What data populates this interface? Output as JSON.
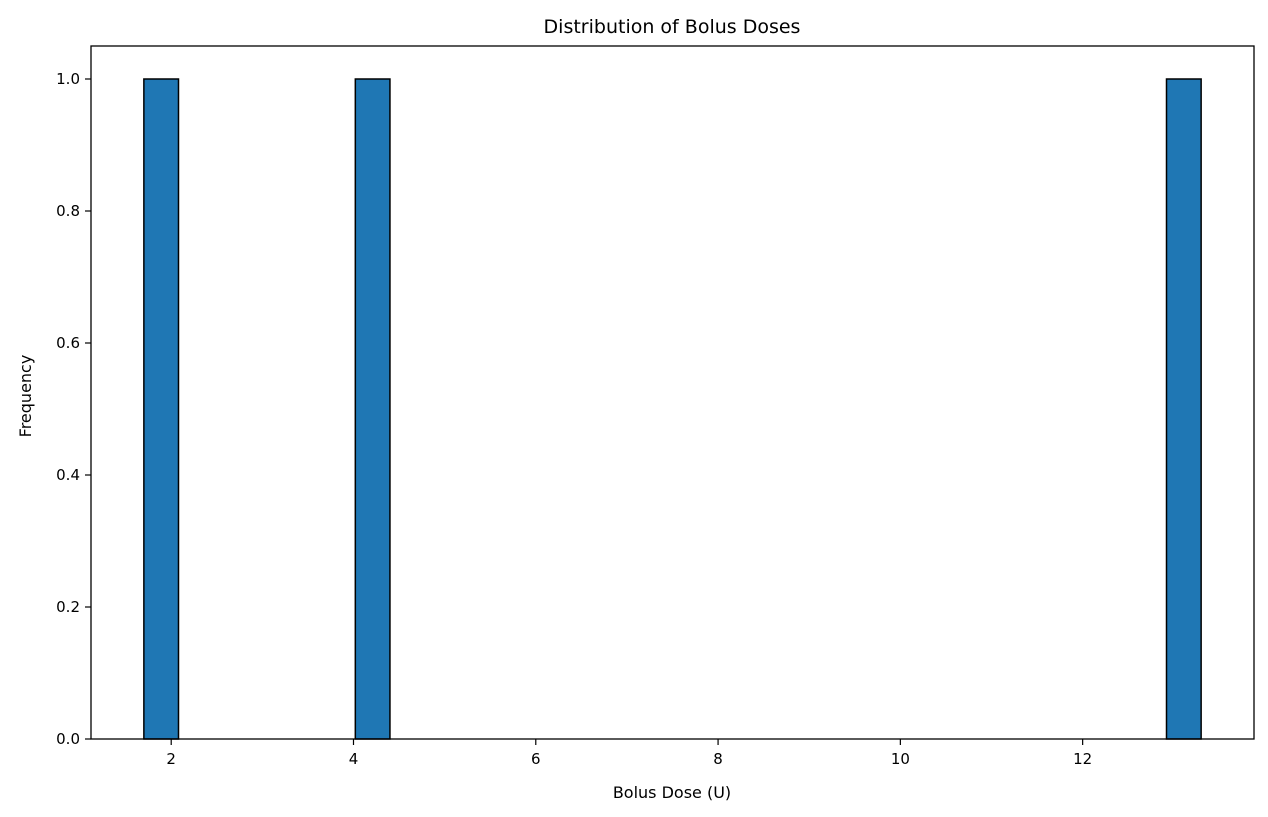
{
  "chart_data": {
    "type": "bar",
    "title": "Distribution of Bolus Doses",
    "xlabel": "Bolus Dose (U)",
    "ylabel": "Frequency",
    "xlim": [
      1.12,
      13.88
    ],
    "ylim": [
      0,
      1.05
    ],
    "xticks": [
      2,
      4,
      6,
      8,
      10,
      12
    ],
    "yticks": [
      0.0,
      0.2,
      0.4,
      0.6,
      0.8,
      1.0
    ],
    "bins": [
      {
        "x0": 1.7,
        "x1": 2.08,
        "count": 1
      },
      {
        "x0": 4.02,
        "x1": 4.4,
        "count": 1
      },
      {
        "x0": 12.92,
        "x1": 13.3,
        "count": 1
      }
    ],
    "grid": false,
    "colors": {
      "bar_fill": "#1f77b4",
      "bar_edge": "#000000"
    }
  }
}
